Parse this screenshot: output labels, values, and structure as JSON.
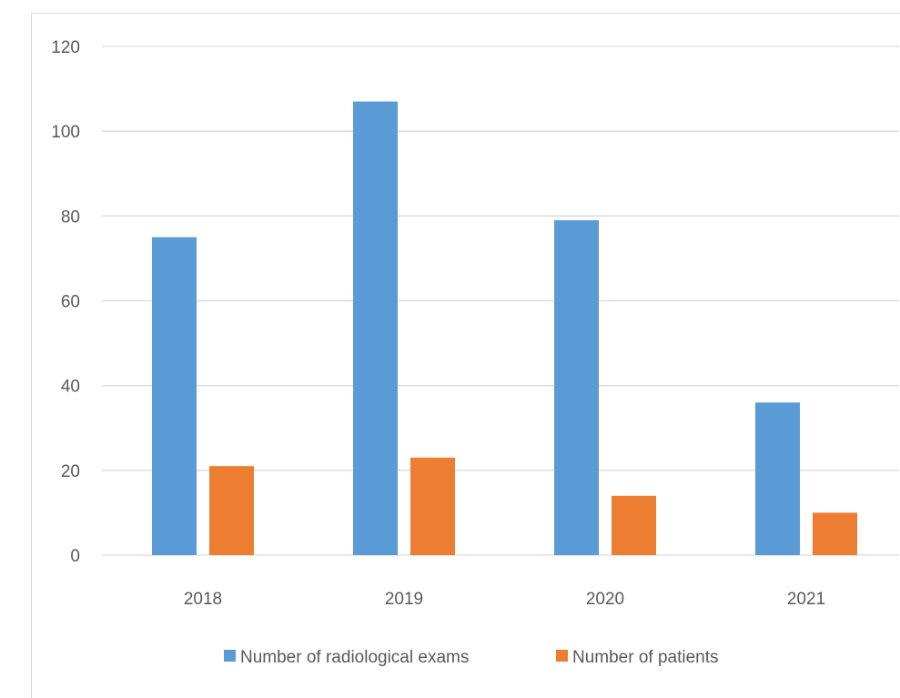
{
  "chart_data": {
    "type": "bar",
    "categories": [
      "2018",
      "2019",
      "2020",
      "2021"
    ],
    "series": [
      {
        "name": "Number of radiological exams",
        "values": [
          75,
          107,
          79,
          36
        ],
        "color": "#5b9bd5"
      },
      {
        "name": "Number of patients",
        "values": [
          21,
          23,
          14,
          10
        ],
        "color": "#ed7d31"
      }
    ],
    "ylim": [
      0,
      120
    ],
    "yticks": [
      0,
      20,
      40,
      60,
      80,
      100,
      120
    ],
    "grid": true,
    "gridColor": "#d9d9d9",
    "legend": "bottom"
  }
}
